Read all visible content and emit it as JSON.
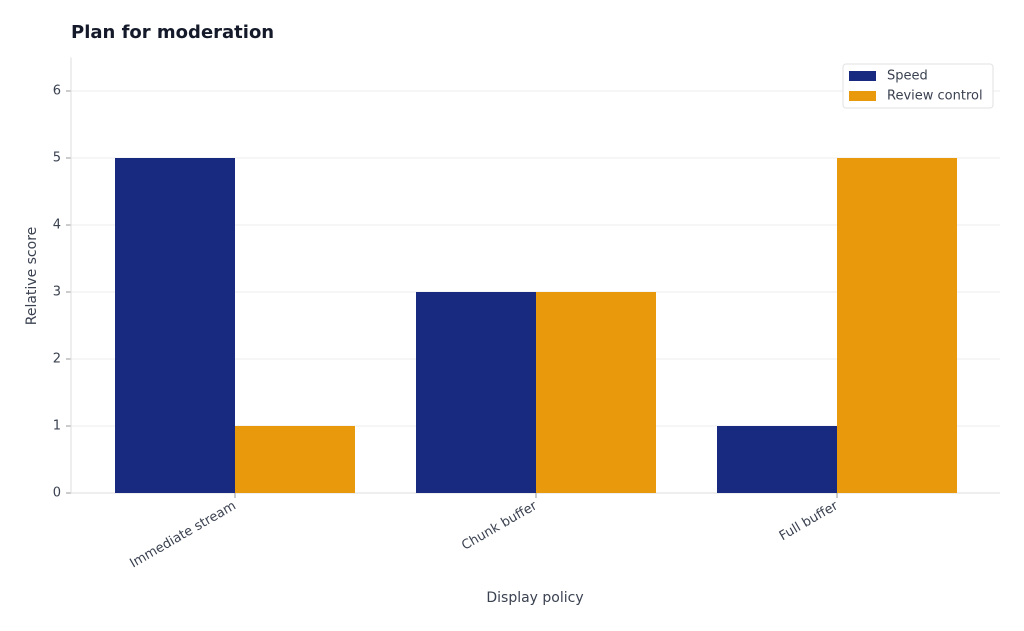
{
  "chart_data": {
    "type": "bar",
    "title": "Plan for moderation",
    "x_label": "Display policy",
    "y_label": "Relative score",
    "categories": [
      "Immediate stream",
      "Chunk buffer",
      "Full buffer"
    ],
    "series": [
      {
        "name": "Speed",
        "color": "#172a80",
        "values": [
          5,
          3,
          1
        ]
      },
      {
        "name": "Review control",
        "color": "#e99a0c",
        "values": [
          1,
          3,
          5
        ]
      }
    ],
    "ylim": [
      0,
      6.5
    ],
    "yticks": [
      0,
      1,
      2,
      3,
      4,
      5,
      6
    ],
    "grid": true,
    "legend": "upper right"
  }
}
